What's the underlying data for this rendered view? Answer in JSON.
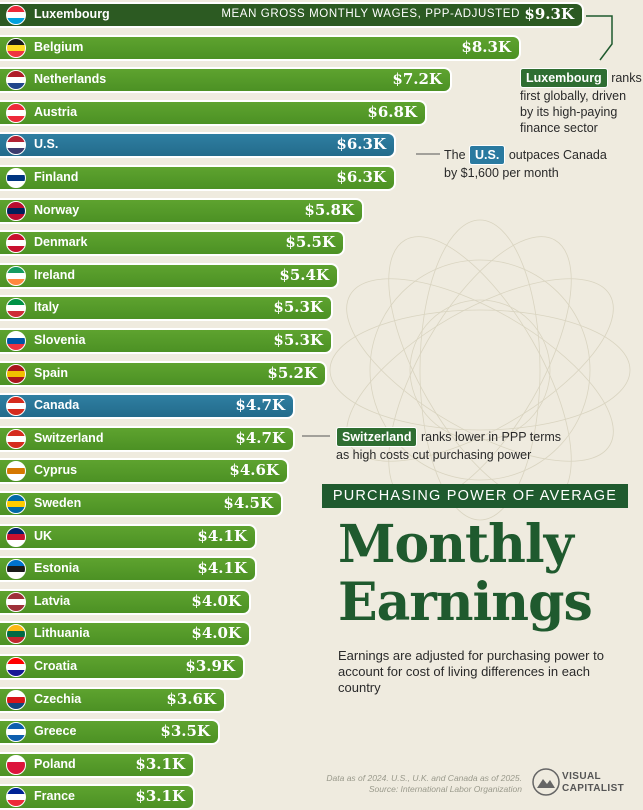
{
  "chart_data": {
    "type": "bar",
    "orientation": "horizontal",
    "title": "Monthly Earnings",
    "subtitle": "PURCHASING POWER OF AVERAGE",
    "value_note": "MEAN GROSS MONTHLY WAGES, PPP-ADJUSTED",
    "categories": [
      "Luxembourg",
      "Belgium",
      "Netherlands",
      "Austria",
      "U.S.",
      "Finland",
      "Norway",
      "Denmark",
      "Ireland",
      "Italy",
      "Slovenia",
      "Spain",
      "Canada",
      "Switzerland",
      "Cyprus",
      "Sweden",
      "UK",
      "Estonia",
      "Latvia",
      "Lithuania",
      "Croatia",
      "Czechia",
      "Greece",
      "Poland",
      "France"
    ],
    "values": [
      9.3,
      8.3,
      7.2,
      6.8,
      6.3,
      6.3,
      5.8,
      5.5,
      5.4,
      5.3,
      5.3,
      5.2,
      4.7,
      4.7,
      4.6,
      4.5,
      4.1,
      4.1,
      4.0,
      4.0,
      3.9,
      3.6,
      3.5,
      3.1,
      3.1
    ],
    "value_labels": [
      "$9.3K",
      "$8.3K",
      "$7.2K",
      "$6.8K",
      "$6.3K",
      "$6.3K",
      "$5.8K",
      "$5.5K",
      "$5.4K",
      "$5.3K",
      "$5.3K",
      "$5.2K",
      "$4.7K",
      "$4.7K",
      "$4.6K",
      "$4.5K",
      "$4.1K",
      "$4.1K",
      "$4.0K",
      "$4.0K",
      "$3.9K",
      "$3.6K",
      "$3.5K",
      "$3.1K",
      "$3.1K"
    ],
    "highlighted": [
      "U.S.",
      "Canada"
    ],
    "colors": {
      "default": "#4f9427",
      "highlight": "#2a7aa0",
      "top": "#2c5a22",
      "title": "#1f5a2e"
    },
    "flags": {
      "Luxembourg": [
        "#ed2939",
        "#ffffff",
        "#00a1de"
      ],
      "Belgium": [
        "#1a1a1a",
        "#fdda24",
        "#ef3340"
      ],
      "Netherlands": [
        "#ae1c28",
        "#ffffff",
        "#21468b"
      ],
      "Austria": [
        "#ed2939",
        "#ffffff",
        "#ed2939"
      ],
      "U.S.": [
        "#b22234",
        "#ffffff",
        "#3c3b6e"
      ],
      "Finland": [
        "#ffffff",
        "#003580",
        "#ffffff"
      ],
      "Norway": [
        "#ba0c2f",
        "#00205b",
        "#ba0c2f"
      ],
      "Denmark": [
        "#c8102e",
        "#ffffff",
        "#c8102e"
      ],
      "Ireland": [
        "#169b62",
        "#ffffff",
        "#ff883e"
      ],
      "Italy": [
        "#009246",
        "#ffffff",
        "#ce2b37"
      ],
      "Slovenia": [
        "#ffffff",
        "#0055a4",
        "#ef3340"
      ],
      "Spain": [
        "#aa151b",
        "#f1bf00",
        "#aa151b"
      ],
      "Canada": [
        "#d52b1e",
        "#ffffff",
        "#d52b1e"
      ],
      "Switzerland": [
        "#d52b1e",
        "#ffffff",
        "#d52b1e"
      ],
      "Cyprus": [
        "#ffffff",
        "#d57800",
        "#ffffff"
      ],
      "Sweden": [
        "#006aa7",
        "#fecc00",
        "#006aa7"
      ],
      "UK": [
        "#012169",
        "#c8102e",
        "#ffffff"
      ],
      "Estonia": [
        "#0072ce",
        "#1a1a1a",
        "#ffffff"
      ],
      "Latvia": [
        "#9e3039",
        "#ffffff",
        "#9e3039"
      ],
      "Lithuania": [
        "#fdb913",
        "#006a44",
        "#c1272d"
      ],
      "Croatia": [
        "#ff0000",
        "#ffffff",
        "#171796"
      ],
      "Czechia": [
        "#ffffff",
        "#d7141a",
        "#11457e"
      ],
      "Greece": [
        "#0d5eaf",
        "#ffffff",
        "#0d5eaf"
      ],
      "Poland": [
        "#ffffff",
        "#dc143c",
        "#dc143c"
      ],
      "France": [
        "#002395",
        "#ffffff",
        "#ed2939"
      ]
    }
  },
  "annotations": {
    "luxembourg": {
      "tag": "Luxembourg",
      "text_1": "ranks",
      "text_2": "first globally, driven",
      "text_3": "by its high-paying",
      "text_4": "finance sector"
    },
    "us": {
      "prefix": "The",
      "tag": "U.S.",
      "text_1": "outpaces Canada",
      "text_2": "by $1,600 per month"
    },
    "switzerland": {
      "tag": "Switzerland",
      "text_1": "ranks lower in PPP terms",
      "text_2": "as high costs cut purchasing power"
    }
  },
  "title_lines": [
    "Monthly",
    "Earnings"
  ],
  "description": "Earnings are adjusted for purchasing power to account for cost of living differences in each country",
  "source_line_1": "Data as of 2024. U.S., U.K. and Canada as of 2025.",
  "source_line_2": "Source: International Labor Organization",
  "logo": {
    "line_1": "VISUAL",
    "line_2": "CAPITALIST"
  }
}
